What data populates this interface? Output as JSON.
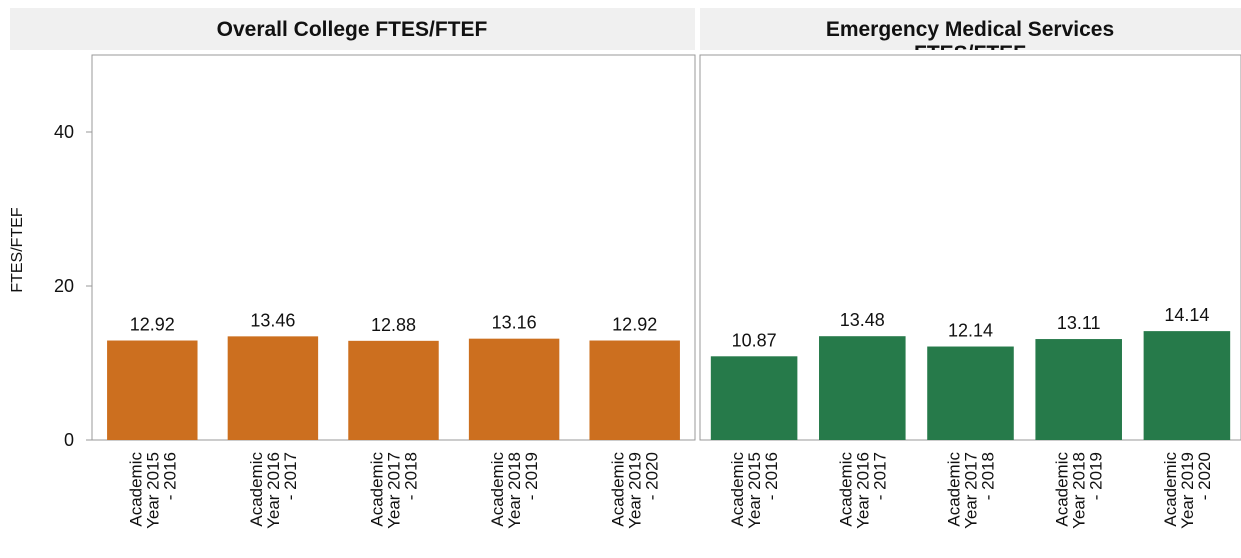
{
  "chart_data": [
    {
      "type": "bar",
      "title": "Overall College FTES/FTEF",
      "ylabel": "FTES/FTEF",
      "categories": [
        "Academic Year 2015 - 2016",
        "Academic Year 2016 - 2017",
        "Academic Year 2017 - 2018",
        "Academic Year 2018 - 2019",
        "Academic Year 2019 - 2020"
      ],
      "values": [
        12.92,
        13.46,
        12.88,
        13.16,
        12.92
      ],
      "color": "#cc6f1f",
      "ylim": [
        0,
        50
      ],
      "yticks": [
        0,
        20,
        40
      ]
    },
    {
      "type": "bar",
      "title": "Emergency Medical Services FTES/FTEF",
      "categories": [
        "Academic Year 2015 - 2016",
        "Academic Year 2016 - 2017",
        "Academic Year 2017 - 2018",
        "Academic Year 2018 - 2019",
        "Academic Year 2019 - 2020"
      ],
      "values": [
        10.87,
        13.48,
        12.14,
        13.11,
        14.14
      ],
      "color": "#267a4a",
      "ylim": [
        0,
        50
      ]
    }
  ]
}
